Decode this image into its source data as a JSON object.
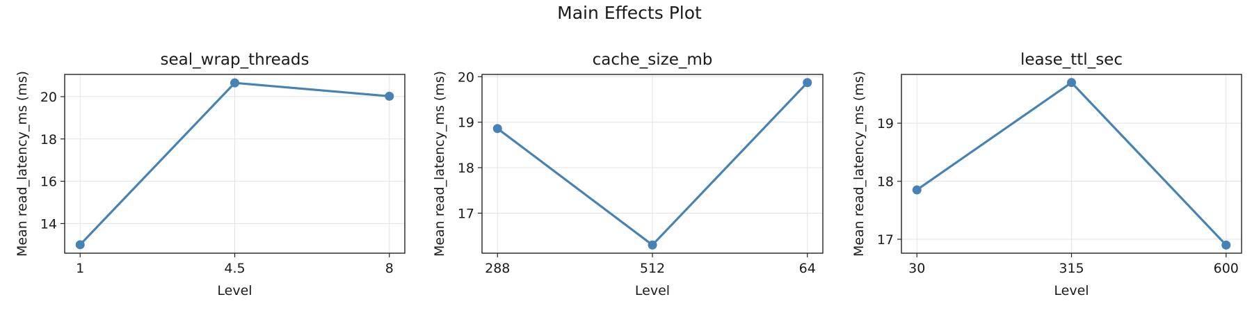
{
  "title": "Main Effects Plot",
  "line_color": "#4682b4",
  "chart_data": [
    {
      "type": "line",
      "title": "seal_wrap_threads",
      "xlabel": "Level",
      "ylabel": "Mean read_latency_ms (ms)",
      "categories": [
        "1",
        "4.5",
        "8"
      ],
      "values": [
        13.0,
        20.65,
        20.02
      ],
      "ylim": [
        12.6,
        21.05
      ],
      "yticks": [
        14,
        16,
        18,
        20
      ],
      "grid": true
    },
    {
      "type": "line",
      "title": "cache_size_mb",
      "xlabel": "Level",
      "ylabel": "Mean read_latency_ms (ms)",
      "categories": [
        "288",
        "512",
        "64"
      ],
      "values": [
        18.86,
        16.3,
        19.87
      ],
      "ylim": [
        16.12,
        20.05
      ],
      "yticks": [
        17,
        18,
        19,
        20
      ],
      "grid": true
    },
    {
      "type": "line",
      "title": "lease_ttl_sec",
      "xlabel": "Level",
      "ylabel": "Mean read_latency_ms (ms)",
      "categories": [
        "30",
        "315",
        "600"
      ],
      "values": [
        17.85,
        19.7,
        16.9
      ],
      "ylim": [
        16.76,
        19.84
      ],
      "yticks": [
        17,
        18,
        19
      ],
      "grid": true
    }
  ]
}
